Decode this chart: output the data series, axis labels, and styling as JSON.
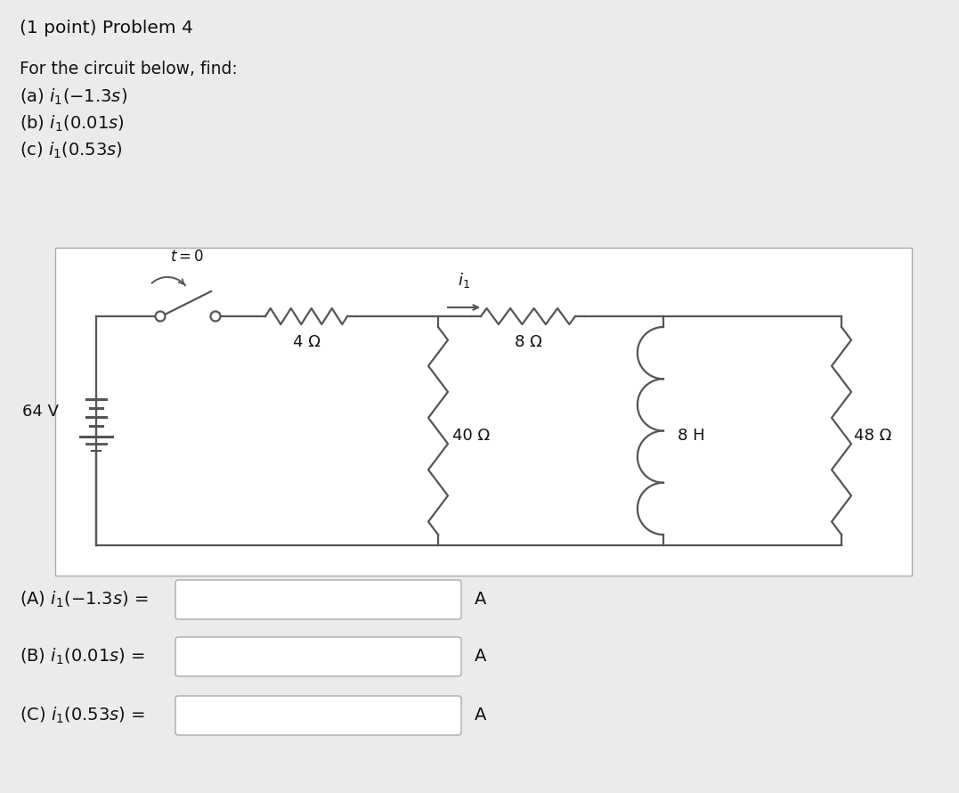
{
  "bg_color": "#ebebeb",
  "circuit_bg": "#ffffff",
  "line_color": "#555555",
  "text_color": "#111111",
  "title_text": "(1 point) Problem 4",
  "subtitle_text": "For the circuit below, find:",
  "part_a_desc": "(a) $i_1(-1.3s)$",
  "part_b_desc": "(b) $i_1(0.01s)$",
  "part_c_desc": "(c) $i_1(0.53s)$",
  "voltage_label": "64 V",
  "r1_label": "4 Ω",
  "r2_label": "40 Ω",
  "r3_label": "8 Ω",
  "r4_label": "8 H",
  "r5_label": "48 Ω",
  "i1_label": "$i_1$",
  "t0_label": "$t = 0$"
}
